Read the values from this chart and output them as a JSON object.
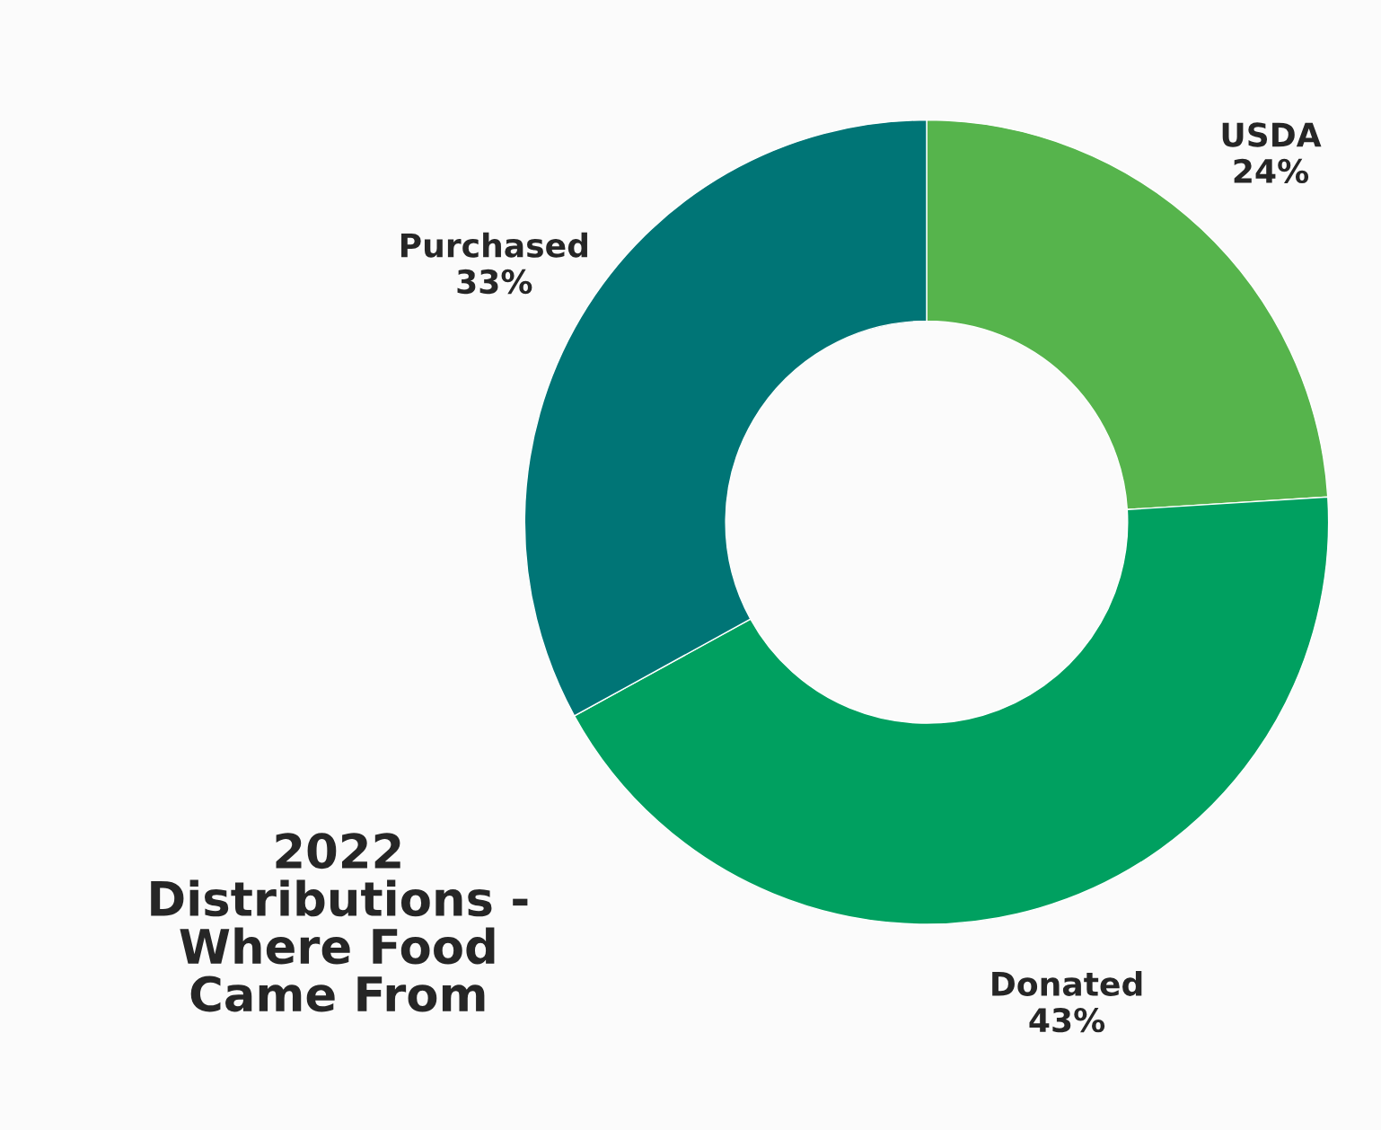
{
  "chart_data": {
    "type": "donut",
    "title": "2022\nDistributions -\nWhere Food\nCame From",
    "categories": [
      "USDA",
      "Donated",
      "Purchased"
    ],
    "values": [
      24,
      43,
      33
    ],
    "value_labels": [
      "24%",
      "43%",
      "33%"
    ],
    "colors": [
      "#56b44c",
      "#00a060",
      "#007576"
    ]
  }
}
